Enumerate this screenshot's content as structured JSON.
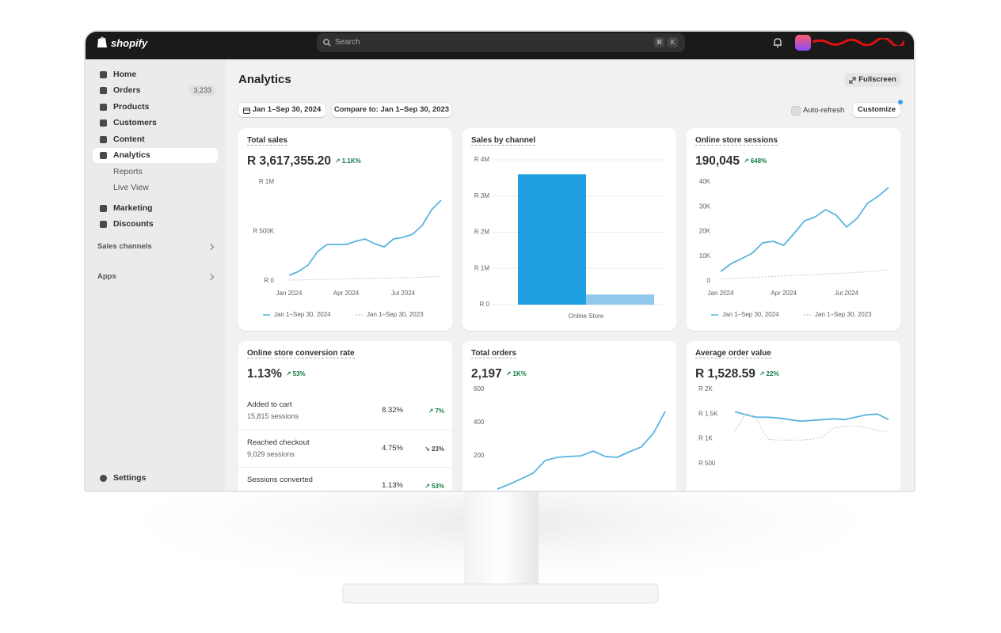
{
  "topbar": {
    "logo": "shopify",
    "search": "Search",
    "shortcut": [
      "⌘",
      "K"
    ]
  },
  "sidebar": {
    "items": [
      {
        "label": "Home"
      },
      {
        "label": "Orders",
        "badge": "3,233"
      },
      {
        "label": "Products"
      },
      {
        "label": "Customers"
      },
      {
        "label": "Content"
      },
      {
        "label": "Analytics",
        "selected": true
      },
      {
        "label": "Reports",
        "sub": true
      },
      {
        "label": "Live View",
        "sub": true
      },
      {
        "label": "Marketing"
      },
      {
        "label": "Discounts"
      }
    ],
    "sections": [
      "Sales channels",
      "Apps"
    ],
    "settings": "Settings"
  },
  "header": {
    "title": "Analytics",
    "fullscreen": "Fullscreen",
    "date_range": "Jan 1–Sep 30, 2024",
    "compare": "Compare to: Jan 1–Sep 30, 2023",
    "auto_refresh": "Auto-refresh",
    "customize": "Customize"
  },
  "chart_data": [
    {
      "type": "line",
      "title": "Total sales",
      "value": "R 3,617,355.20",
      "change": "1.1K%",
      "trend": "up",
      "categories": [
        "Jan 2024",
        null,
        null,
        null,
        null,
        null,
        "Apr 2024",
        null,
        null,
        null,
        null,
        null,
        "Jul 2024",
        null,
        null,
        null,
        null
      ],
      "series": [
        {
          "name": "Jan 1–Sep 30, 2024",
          "color": "#5ab4e0",
          "values": [
            56000,
            96000,
            160000,
            296000,
            368000,
            368000,
            368000,
            400000,
            424000,
            376000,
            344000,
            424000,
            440000,
            472000,
            560000,
            720000,
            816000
          ]
        },
        {
          "name": "Jan 1–Sep 30, 2023",
          "color": "#b9c9d8",
          "dashed": true,
          "values": [
            8000,
            10000,
            12000,
            14000,
            16000,
            18000,
            20000,
            22000,
            24000,
            26000,
            28000,
            30000,
            32000,
            34000,
            38000,
            42000,
            48000
          ]
        }
      ],
      "ylim": [
        0,
        1000000
      ],
      "yticks": [
        {
          "value": 0,
          "label": "R 0"
        },
        {
          "value": 500000,
          "label": "R 500K"
        },
        {
          "value": 1000000,
          "label": "R 1M"
        }
      ],
      "grid": false
    },
    {
      "type": "bar",
      "title": "Sales by channel",
      "categories": [
        "Online Store"
      ],
      "series": [
        {
          "color": "#1ea0e2",
          "values": [
            3600000
          ]
        },
        {
          "color": "#8fc8ec",
          "values": [
            280000
          ]
        }
      ],
      "ylim": [
        0,
        4000000
      ],
      "yticks": [
        {
          "value": 0,
          "label": "R 0"
        },
        {
          "value": 1000000,
          "label": "R 1M"
        },
        {
          "value": 2000000,
          "label": "R 2M"
        },
        {
          "value": 3000000,
          "label": "R 3M"
        },
        {
          "value": 4000000,
          "label": "R 4M"
        }
      ],
      "grid": true
    },
    {
      "type": "line",
      "title": "Online store sessions",
      "value": "190,045",
      "change": "648%",
      "trend": "up",
      "categories": [
        "Jan 2024",
        null,
        null,
        null,
        null,
        null,
        "Apr 2024",
        null,
        null,
        null,
        null,
        null,
        "Jul 2024",
        null,
        null,
        null,
        null
      ],
      "series": [
        {
          "name": "Jan 1–Sep 30, 2024",
          "color": "#5ab4e0",
          "values": [
            3800,
            7000,
            9000,
            11200,
            15400,
            16000,
            14400,
            19200,
            24300,
            25900,
            28800,
            26600,
            21800,
            25300,
            31400,
            34200,
            37800
          ]
        },
        {
          "name": "Jan 1–Sep 30, 2023",
          "color": "#b9c9d8",
          "dashed": true,
          "values": [
            800,
            1000,
            1200,
            1400,
            1600,
            1800,
            2000,
            2200,
            2400,
            2600,
            2800,
            3000,
            3200,
            3400,
            3700,
            4000,
            4600
          ]
        }
      ],
      "ylim": [
        0,
        40000
      ],
      "yticks": [
        0,
        {
          "value": 10000,
          "label": "10K"
        },
        {
          "value": 20000,
          "label": "20K"
        },
        {
          "value": 30000,
          "label": "30K"
        },
        {
          "value": 40000,
          "label": "40K"
        }
      ],
      "grid": false
    },
    {
      "type": "line",
      "title": "Total orders",
      "value": "2,197",
      "change": "1K%",
      "trend": "up",
      "series": [
        {
          "color": "#5ab4e0",
          "values": [
            33,
            62,
            95,
            129,
            205,
            224,
            229,
            233,
            262,
            229,
            224,
            257,
            286,
            367,
            500
          ]
        }
      ],
      "ylim": [
        0,
        600
      ],
      "yticks": [
        200,
        400,
        600
      ],
      "grid": false
    },
    {
      "type": "line",
      "title": "Average order value",
      "value": "R 1,528.59",
      "change": "22%",
      "trend": "up",
      "series": [
        {
          "color": "#5ab4e0",
          "values": [
            1659,
            1595,
            1547,
            1547,
            1531,
            1499,
            1467,
            1483,
            1499,
            1515,
            1499,
            1547,
            1595,
            1611,
            1499
          ]
        },
        {
          "color": "#b9c9d8",
          "dashed": true,
          "values": [
            1260,
            1627,
            1499,
            1100,
            1085,
            1085,
            1085,
            1100,
            1148,
            1340,
            1356,
            1372,
            1340,
            1276,
            1260
          ]
        }
      ],
      "ylim": [
        0,
        2000
      ],
      "yticks": [
        {
          "value": 500,
          "label": "R 500"
        },
        {
          "value": 1000,
          "label": "R 1K"
        },
        {
          "value": 1500,
          "label": "R 1.5K"
        },
        {
          "value": 2000,
          "label": "R 2K"
        }
      ],
      "grid": false
    }
  ],
  "conversion": {
    "title": "Online store conversion rate",
    "value": "1.13%",
    "change": "53%",
    "trend": "up",
    "rows": [
      {
        "label": "Added to cart",
        "sessions": "15,815 sessions",
        "rate": "8.32%",
        "change": "7%",
        "trend": "up"
      },
      {
        "label": "Reached checkout",
        "sessions": "9,029 sessions",
        "rate": "4.75%",
        "change": "23%",
        "trend": "down"
      },
      {
        "label": "Sessions converted",
        "rate": "1.13%",
        "change": "53%",
        "trend": "up"
      }
    ]
  }
}
